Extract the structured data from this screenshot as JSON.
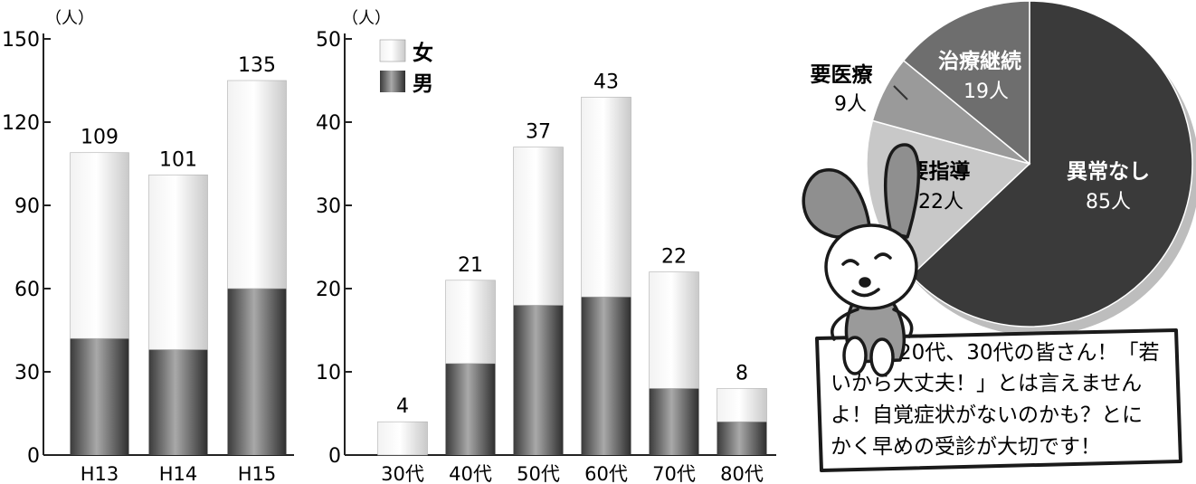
{
  "chart_data": [
    {
      "type": "bar",
      "stacked": true,
      "unit": "（人）",
      "categories": [
        "H13",
        "H14",
        "H15"
      ],
      "series": [
        {
          "name": "男",
          "values": [
            42,
            38,
            60
          ]
        },
        {
          "name": "女",
          "values": [
            67,
            63,
            75
          ]
        }
      ],
      "totals": [
        "109",
        "101",
        "135"
      ],
      "ylim": [
        0,
        150
      ],
      "yticks": [
        "0",
        "30",
        "60",
        "90",
        "120",
        "150"
      ],
      "grid": false
    },
    {
      "type": "bar",
      "stacked": true,
      "unit": "（人）",
      "categories": [
        "30代",
        "40代",
        "50代",
        "60代",
        "70代",
        "80代"
      ],
      "series": [
        {
          "name": "男",
          "values": [
            0,
            11,
            18,
            19,
            8,
            4
          ]
        },
        {
          "name": "女",
          "values": [
            4,
            10,
            19,
            24,
            14,
            4
          ]
        }
      ],
      "totals": [
        "4",
        "21",
        "37",
        "43",
        "22",
        "8"
      ],
      "ylim": [
        0,
        50
      ],
      "yticks": [
        "0",
        "10",
        "20",
        "30",
        "40",
        "50"
      ],
      "legend": [
        "女",
        "男"
      ],
      "legend_position": "top-left",
      "grid": false
    },
    {
      "type": "pie",
      "slices": [
        {
          "label": "異常なし",
          "count_label": "85人",
          "value": 85
        },
        {
          "label": "要指導",
          "count_label": "22人",
          "value": 22
        },
        {
          "label": "要医療",
          "count_label": "9人",
          "value": 9
        },
        {
          "label": "治療継続",
          "count_label": "19人",
          "value": 19
        }
      ]
    }
  ],
  "colors": {
    "female_light": "#e4e4e4",
    "male_dark": "#454545",
    "pie_normal": "#3a3a3a",
    "pie_guidance": "#c8c8c8",
    "pie_medical": "#9a9a9a",
    "pie_treatment": "#6e6e6e"
  },
  "bubble": {
    "lines": [
      "20代、30代の皆さん！「若",
      "いから大丈夫！」とは言えません",
      "よ！自覚症状がないのかも？とに",
      "かく早めの受診が大切です！"
    ]
  },
  "mascot": {
    "icon": "rabbit-mascot-icon"
  }
}
